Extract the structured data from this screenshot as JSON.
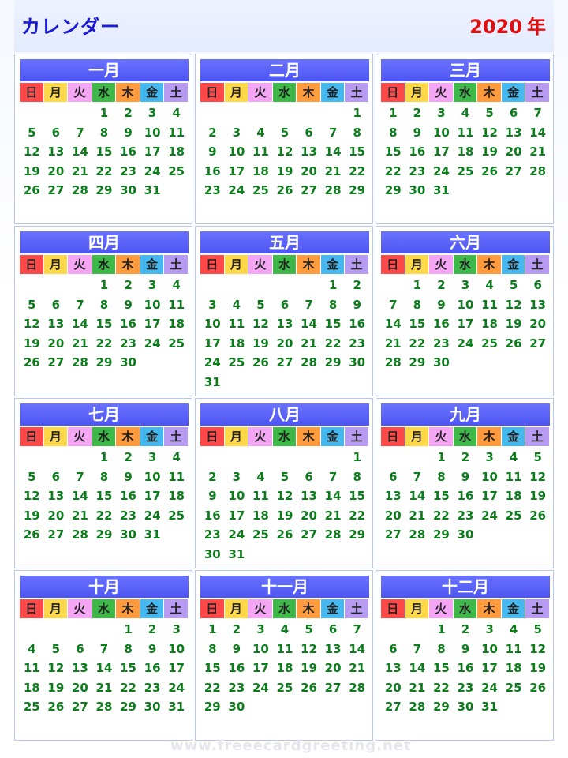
{
  "header": {
    "title": "カレンダー",
    "year": "2020",
    "year_suffix": "年"
  },
  "weekdays": [
    "日",
    "月",
    "火",
    "水",
    "木",
    "金",
    "土"
  ],
  "weekday_colors": [
    "#ff4848",
    "#ffd84a",
    "#f4a6f4",
    "#3fb84a",
    "#ff9b3c",
    "#45b8f0",
    "#b79af2"
  ],
  "months": [
    {
      "name": "一月",
      "weeks": [
        [
          "",
          "",
          "",
          "1",
          "2",
          "3",
          "4"
        ],
        [
          "5",
          "6",
          "7",
          "8",
          "9",
          "10",
          "11"
        ],
        [
          "12",
          "13",
          "14",
          "15",
          "16",
          "17",
          "18"
        ],
        [
          "19",
          "20",
          "21",
          "22",
          "23",
          "24",
          "25"
        ],
        [
          "26",
          "27",
          "28",
          "29",
          "30",
          "31",
          ""
        ]
      ]
    },
    {
      "name": "二月",
      "weeks": [
        [
          "",
          "",
          "",
          "",
          "",
          "",
          "1"
        ],
        [
          "2",
          "3",
          "4",
          "5",
          "6",
          "7",
          "8"
        ],
        [
          "9",
          "10",
          "11",
          "12",
          "13",
          "14",
          "15"
        ],
        [
          "16",
          "17",
          "18",
          "19",
          "20",
          "21",
          "22"
        ],
        [
          "23",
          "24",
          "25",
          "26",
          "27",
          "28",
          "29"
        ]
      ]
    },
    {
      "name": "三月",
      "weeks": [
        [
          "1",
          "2",
          "3",
          "4",
          "5",
          "6",
          "7"
        ],
        [
          "8",
          "9",
          "10",
          "11",
          "12",
          "13",
          "14"
        ],
        [
          "15",
          "16",
          "17",
          "18",
          "19",
          "20",
          "21"
        ],
        [
          "22",
          "23",
          "24",
          "25",
          "26",
          "27",
          "28"
        ],
        [
          "29",
          "30",
          "31",
          "",
          "",
          "",
          ""
        ]
      ]
    },
    {
      "name": "四月",
      "weeks": [
        [
          "",
          "",
          "",
          "1",
          "2",
          "3",
          "4"
        ],
        [
          "5",
          "6",
          "7",
          "8",
          "9",
          "10",
          "11"
        ],
        [
          "12",
          "13",
          "14",
          "15",
          "16",
          "17",
          "18"
        ],
        [
          "19",
          "20",
          "21",
          "22",
          "23",
          "24",
          "25"
        ],
        [
          "26",
          "27",
          "28",
          "29",
          "30",
          "",
          ""
        ]
      ]
    },
    {
      "name": "五月",
      "weeks": [
        [
          "",
          "",
          "",
          "",
          "",
          "1",
          "2"
        ],
        [
          "3",
          "4",
          "5",
          "6",
          "7",
          "8",
          "9"
        ],
        [
          "10",
          "11",
          "12",
          "13",
          "14",
          "15",
          "16"
        ],
        [
          "17",
          "18",
          "19",
          "20",
          "21",
          "22",
          "23"
        ],
        [
          "24",
          "25",
          "26",
          "27",
          "28",
          "29",
          "30"
        ],
        [
          "31",
          "",
          "",
          "",
          "",
          "",
          ""
        ]
      ]
    },
    {
      "name": "六月",
      "weeks": [
        [
          "",
          "1",
          "2",
          "3",
          "4",
          "5",
          "6"
        ],
        [
          "7",
          "8",
          "9",
          "10",
          "11",
          "12",
          "13"
        ],
        [
          "14",
          "15",
          "16",
          "17",
          "18",
          "19",
          "20"
        ],
        [
          "21",
          "22",
          "23",
          "24",
          "25",
          "26",
          "27"
        ],
        [
          "28",
          "29",
          "30",
          "",
          "",
          "",
          ""
        ]
      ]
    },
    {
      "name": "七月",
      "weeks": [
        [
          "",
          "",
          "",
          "1",
          "2",
          "3",
          "4"
        ],
        [
          "5",
          "6",
          "7",
          "8",
          "9",
          "10",
          "11"
        ],
        [
          "12",
          "13",
          "14",
          "15",
          "16",
          "17",
          "18"
        ],
        [
          "19",
          "20",
          "21",
          "22",
          "23",
          "24",
          "25"
        ],
        [
          "26",
          "27",
          "28",
          "29",
          "30",
          "31",
          ""
        ]
      ]
    },
    {
      "name": "八月",
      "weeks": [
        [
          "",
          "",
          "",
          "",
          "",
          "",
          "1"
        ],
        [
          "2",
          "3",
          "4",
          "5",
          "6",
          "7",
          "8"
        ],
        [
          "9",
          "10",
          "11",
          "12",
          "13",
          "14",
          "15"
        ],
        [
          "16",
          "17",
          "18",
          "19",
          "20",
          "21",
          "22"
        ],
        [
          "23",
          "24",
          "25",
          "26",
          "27",
          "28",
          "29"
        ],
        [
          "30",
          "31",
          "",
          "",
          "",
          "",
          ""
        ]
      ]
    },
    {
      "name": "九月",
      "weeks": [
        [
          "",
          "",
          "1",
          "2",
          "3",
          "4",
          "5"
        ],
        [
          "6",
          "7",
          "8",
          "9",
          "10",
          "11",
          "12"
        ],
        [
          "13",
          "14",
          "15",
          "16",
          "17",
          "18",
          "19"
        ],
        [
          "20",
          "21",
          "22",
          "23",
          "24",
          "25",
          "26"
        ],
        [
          "27",
          "28",
          "29",
          "30",
          "",
          "",
          ""
        ]
      ]
    },
    {
      "name": "十月",
      "weeks": [
        [
          "",
          "",
          "",
          "",
          "1",
          "2",
          "3"
        ],
        [
          "4",
          "5",
          "6",
          "7",
          "8",
          "9",
          "10"
        ],
        [
          "11",
          "12",
          "13",
          "14",
          "15",
          "16",
          "17"
        ],
        [
          "18",
          "19",
          "20",
          "21",
          "22",
          "23",
          "24"
        ],
        [
          "25",
          "26",
          "27",
          "28",
          "29",
          "30",
          "31"
        ]
      ]
    },
    {
      "name": "十一月",
      "weeks": [
        [
          "1",
          "2",
          "3",
          "4",
          "5",
          "6",
          "7"
        ],
        [
          "8",
          "9",
          "10",
          "11",
          "12",
          "13",
          "14"
        ],
        [
          "15",
          "16",
          "17",
          "18",
          "19",
          "20",
          "21"
        ],
        [
          "22",
          "23",
          "24",
          "25",
          "26",
          "27",
          "28"
        ],
        [
          "29",
          "30",
          "",
          "",
          "",
          "",
          ""
        ]
      ]
    },
    {
      "name": "十二月",
      "weeks": [
        [
          "",
          "",
          "1",
          "2",
          "3",
          "4",
          "5"
        ],
        [
          "6",
          "7",
          "8",
          "9",
          "10",
          "11",
          "12"
        ],
        [
          "13",
          "14",
          "15",
          "16",
          "17",
          "18",
          "19"
        ],
        [
          "20",
          "21",
          "22",
          "23",
          "24",
          "25",
          "26"
        ],
        [
          "27",
          "28",
          "29",
          "30",
          "31",
          "",
          ""
        ]
      ]
    }
  ],
  "watermark": "www.freeecardgreeting.net"
}
